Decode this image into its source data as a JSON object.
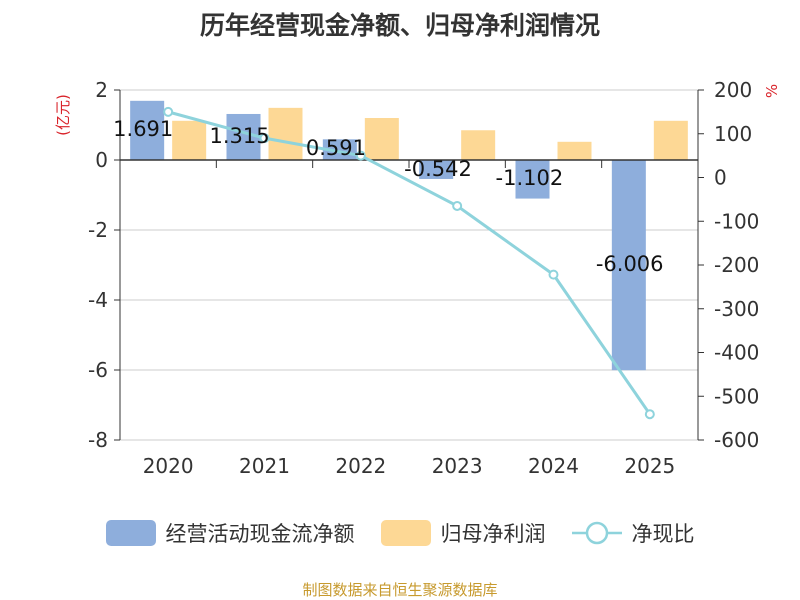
{
  "chart_data": {
    "type": "bar",
    "title": "历年经营现金净额、归母净利润情况",
    "categories": [
      "2020",
      "2021",
      "2022",
      "2023",
      "2024",
      "2025"
    ],
    "series": [
      {
        "name": "经营活动现金流净额",
        "type": "bar",
        "axis": "left",
        "color": "#8eaedc",
        "values": [
          1.691,
          1.315,
          0.591,
          -0.542,
          -1.102,
          -6.006
        ],
        "labels": [
          "1.691",
          "1.315",
          "0.591",
          "-0.542",
          "-1.102",
          "-6.006"
        ]
      },
      {
        "name": "归母净利润",
        "type": "bar",
        "axis": "left",
        "color": "#fdd895",
        "values": [
          1.12,
          1.49,
          1.2,
          0.85,
          0.52,
          1.12
        ]
      },
      {
        "name": "净现比",
        "type": "line",
        "axis": "right",
        "color": "#8ed3dc",
        "values": [
          150,
          90,
          50,
          -65,
          -222,
          -541
        ]
      }
    ],
    "left_axis": {
      "label": "(亿元)",
      "ylim": [
        -8,
        2
      ],
      "ticks": [
        "2",
        "0",
        "-2",
        "-4",
        "-6",
        "-8"
      ],
      "tick_values": [
        2,
        0,
        -2,
        -4,
        -6,
        -8
      ]
    },
    "right_axis": {
      "label": "%",
      "ylim": [
        -600,
        200
      ],
      "ticks": [
        "200",
        "100",
        "0",
        "-100",
        "-200",
        "-300",
        "-400",
        "-500",
        "-600"
      ],
      "tick_values": [
        200,
        100,
        0,
        -100,
        -200,
        -300,
        -400,
        -500,
        -600
      ]
    },
    "legend_position": "bottom",
    "grid": true
  },
  "footer": {
    "source": "制图数据来自恒生聚源数据库"
  },
  "colors": {
    "title": "#333333",
    "axis_label": "#d9232a",
    "source": "#c79a2e"
  }
}
